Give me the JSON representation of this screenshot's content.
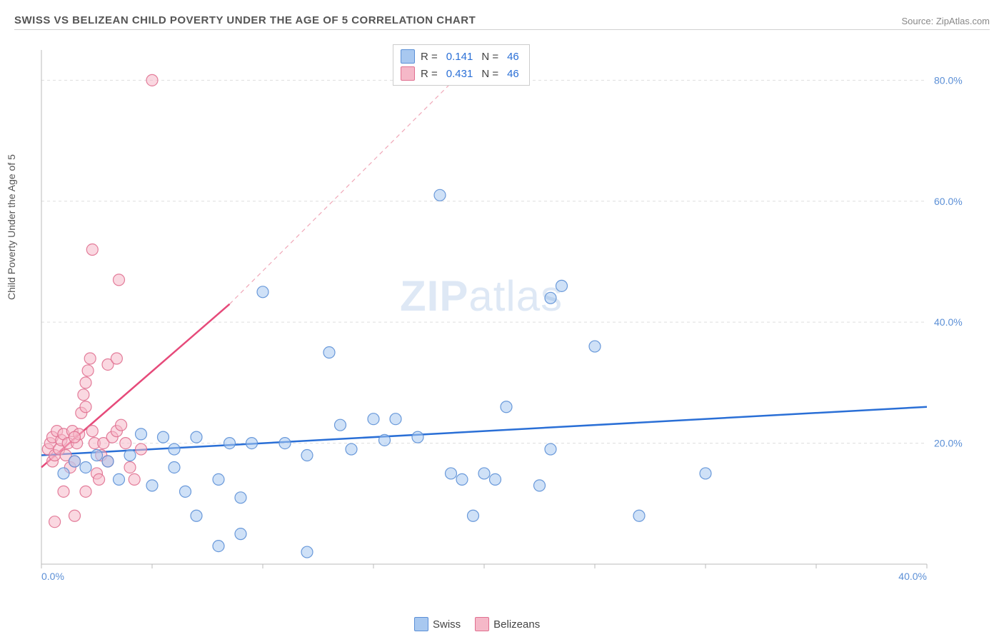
{
  "title": "SWISS VS BELIZEAN CHILD POVERTY UNDER THE AGE OF 5 CORRELATION CHART",
  "source_label": "Source: ZipAtlas.com",
  "y_axis_label": "Child Poverty Under the Age of 5",
  "watermark_a": "ZIP",
  "watermark_b": "atlas",
  "chart": {
    "type": "scatter",
    "xlim": [
      0,
      40
    ],
    "ylim": [
      0,
      85
    ],
    "x_ticks": [
      0,
      5,
      10,
      15,
      20,
      25,
      30,
      35,
      40
    ],
    "x_tick_labels": [
      "0.0%",
      "",
      "",
      "",
      "",
      "",
      "",
      "",
      "40.0%"
    ],
    "y_ticks": [
      20,
      40,
      60,
      80
    ],
    "y_tick_labels": [
      "20.0%",
      "40.0%",
      "60.0%",
      "80.0%"
    ],
    "background_color": "#ffffff",
    "grid_color": "#dddddd",
    "axis_color": "#bbbbbb",
    "marker_radius": 8,
    "marker_opacity": 0.55,
    "marker_stroke_opacity": 0.9,
    "series": [
      {
        "name": "Swiss",
        "color_fill": "#a8c8f0",
        "color_stroke": "#5b8fd6",
        "R": "0.141",
        "N": "46",
        "trend": {
          "x1": 0,
          "y1": 18,
          "x2": 40,
          "y2": 26,
          "color": "#2a6fd6",
          "width": 2.5,
          "dash": ""
        },
        "points": [
          [
            4.5,
            21.5
          ],
          [
            5.5,
            21
          ],
          [
            6,
            19
          ],
          [
            7,
            21
          ],
          [
            8,
            14
          ],
          [
            8.5,
            20
          ],
          [
            9,
            11
          ],
          [
            9.5,
            20
          ],
          [
            10,
            45
          ],
          [
            11,
            20
          ],
          [
            12,
            18
          ],
          [
            13,
            35
          ],
          [
            13.5,
            23
          ],
          [
            14,
            19
          ],
          [
            15,
            24
          ],
          [
            15.5,
            20.5
          ],
          [
            16,
            24
          ],
          [
            17,
            21
          ],
          [
            18,
            61
          ],
          [
            18.5,
            15
          ],
          [
            19,
            14
          ],
          [
            19.5,
            8
          ],
          [
            20,
            15
          ],
          [
            20.5,
            14
          ],
          [
            21,
            26
          ],
          [
            22.5,
            13
          ],
          [
            23,
            44
          ],
          [
            23.5,
            46
          ],
          [
            25,
            36
          ],
          [
            27,
            8
          ],
          [
            30,
            15
          ],
          [
            2,
            16
          ],
          [
            2.5,
            18
          ],
          [
            3,
            17
          ],
          [
            3.5,
            14
          ],
          [
            4,
            18
          ],
          [
            5,
            13
          ],
          [
            6,
            16
          ],
          [
            6.5,
            12
          ],
          [
            7,
            8
          ],
          [
            8,
            3
          ],
          [
            9,
            5
          ],
          [
            12,
            2
          ],
          [
            23,
            19
          ],
          [
            1.5,
            17
          ],
          [
            1,
            15
          ]
        ]
      },
      {
        "name": "Belizeans",
        "color_fill": "#f5b8c8",
        "color_stroke": "#e07090",
        "R": "0.431",
        "N": "46",
        "trend_solid": {
          "x1": 0,
          "y1": 16,
          "x2": 8.5,
          "y2": 43,
          "color": "#e64a7a",
          "width": 2.5
        },
        "trend_dash": {
          "x1": 8.5,
          "y1": 43,
          "x2": 20,
          "y2": 85,
          "color": "#f0a8b8",
          "width": 1.2,
          "dash": "6,5"
        },
        "points": [
          [
            0.3,
            19
          ],
          [
            0.4,
            20
          ],
          [
            0.5,
            17
          ],
          [
            0.5,
            21
          ],
          [
            0.6,
            18
          ],
          [
            0.7,
            22
          ],
          [
            0.8,
            19
          ],
          [
            0.9,
            20.5
          ],
          [
            1,
            21.5
          ],
          [
            1.1,
            18
          ],
          [
            1.2,
            20
          ],
          [
            1.3,
            16
          ],
          [
            1.4,
            22
          ],
          [
            1.5,
            17
          ],
          [
            1.6,
            20
          ],
          [
            1.7,
            21.5
          ],
          [
            1.8,
            25
          ],
          [
            1.9,
            28
          ],
          [
            2,
            30
          ],
          [
            2.1,
            32
          ],
          [
            2.2,
            34
          ],
          [
            2.3,
            22
          ],
          [
            2.4,
            20
          ],
          [
            2.5,
            15
          ],
          [
            2.6,
            14
          ],
          [
            2.7,
            18
          ],
          [
            2.8,
            20
          ],
          [
            3,
            17
          ],
          [
            3.2,
            21
          ],
          [
            3.4,
            22
          ],
          [
            3.5,
            47
          ],
          [
            3.6,
            23
          ],
          [
            3.8,
            20
          ],
          [
            4,
            16
          ],
          [
            4.2,
            14
          ],
          [
            4.5,
            19
          ],
          [
            1,
            12
          ],
          [
            1.5,
            8
          ],
          [
            2,
            12
          ],
          [
            2.3,
            52
          ],
          [
            3,
            33
          ],
          [
            3.4,
            34
          ],
          [
            5,
            80
          ],
          [
            0.6,
            7
          ],
          [
            1.5,
            21
          ],
          [
            2,
            26
          ]
        ]
      }
    ]
  },
  "stats_legend": {
    "R_label": "R =",
    "N_label": "N ="
  },
  "series_legend_labels": [
    "Swiss",
    "Belizeans"
  ]
}
